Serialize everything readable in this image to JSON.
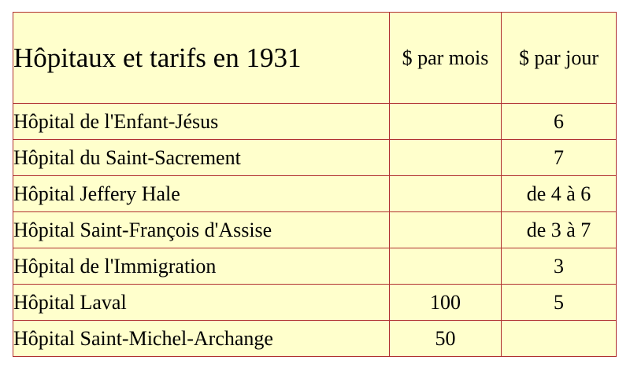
{
  "table": {
    "title": "Hôpitaux et tarifs en 1931",
    "headers": [
      "$ par mois",
      "$ par jour"
    ],
    "rows": [
      {
        "name": "Hôpital de l'Enfant-Jésus",
        "par_mois": "",
        "par_jour": "6"
      },
      {
        "name": "Hôpital du Saint-Sacrement",
        "par_mois": "",
        "par_jour": "7"
      },
      {
        "name": "Hôpital Jeffery Hale",
        "par_mois": "",
        "par_jour": "de 4 à 6"
      },
      {
        "name": "Hôpital Saint-François d'Assise",
        "par_mois": "",
        "par_jour": "de 3 à 7"
      },
      {
        "name": "Hôpital de l'Immigration",
        "par_mois": "",
        "par_jour": "3"
      },
      {
        "name": "Hôpital Laval",
        "par_mois": "100",
        "par_jour": "5"
      },
      {
        "name": "Hôpital Saint-Michel-Archange",
        "par_mois": "50",
        "par_jour": ""
      }
    ]
  },
  "colors": {
    "cell_background": "#ffffcc",
    "border": "#b03030"
  }
}
